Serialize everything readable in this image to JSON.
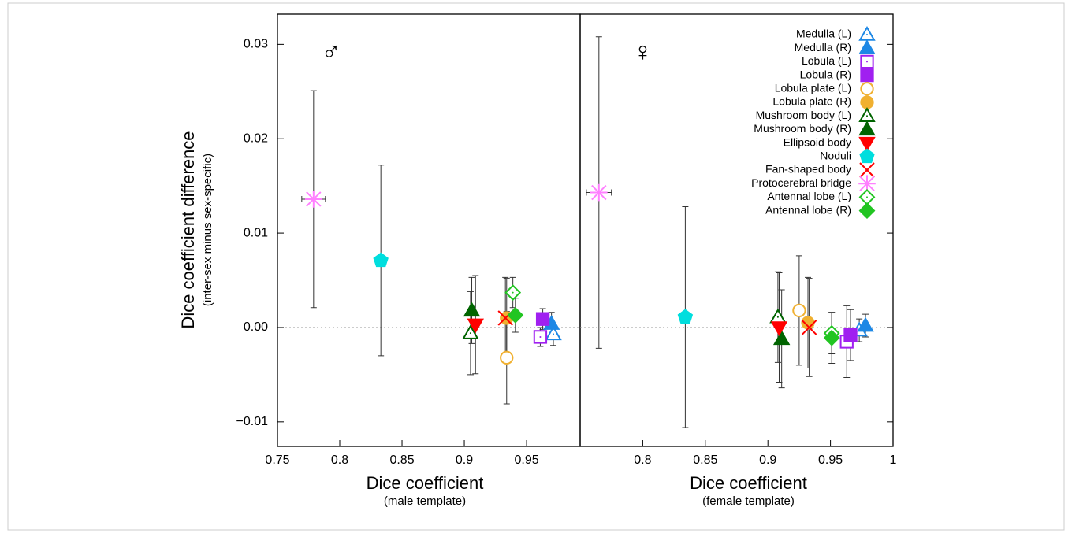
{
  "chart_data": [
    {
      "type": "scatter",
      "ylabel": "Dice coefficient difference",
      "ylabel_sub": "(inter-sex minus sex-specific)",
      "xlabel": "Dice coefficient",
      "xlabel_sub": "(male template)",
      "annotation": "♂",
      "xlim": [
        0.75,
        0.993
      ],
      "xticks": [
        0.75,
        0.8,
        0.85,
        0.9,
        0.95
      ],
      "ylim": [
        -0.0126,
        0.0332
      ],
      "yticks": [
        0.03,
        0.02,
        0.01,
        {
          "value": 0,
          "label": "0.00"
        },
        {
          "value": -0.01,
          "label": "−0.01"
        }
      ],
      "reference_line": 0,
      "series": [
        {
          "color": "#1e88e5",
          "marker": "triangle-open",
          "x": [
            0.9715
          ],
          "values": [
            -0.0007
          ],
          "xerr": [
            0.002
          ],
          "yerr": [
            0.0012
          ]
        },
        {
          "color": "#1e88e5",
          "marker": "triangle",
          "x": [
            0.97
          ],
          "values": [
            0.0004
          ],
          "xerr": [
            0.002
          ],
          "yerr": [
            0.0012
          ]
        },
        {
          "color": "#a020f0",
          "marker": "square-open",
          "x": [
            0.961
          ],
          "values": [
            -0.001
          ],
          "xerr": [
            0.002
          ],
          "yerr": [
            0.001
          ]
        },
        {
          "color": "#a020f0",
          "marker": "square",
          "x": [
            0.963
          ],
          "values": [
            0.0009
          ],
          "xerr": [
            0.002
          ],
          "yerr": [
            0.0011
          ]
        },
        {
          "color": "#f0b030",
          "marker": "circle-open",
          "x": [
            0.934
          ],
          "values": [
            -0.0032
          ],
          "xerr": [
            0.002
          ],
          "yerr": [
            0.0049
          ]
        },
        {
          "color": "#f0b030",
          "marker": "circle",
          "x": [
            0.934
          ],
          "values": [
            0.001
          ],
          "xerr": [
            0.002
          ],
          "yerr": [
            0.0042
          ]
        },
        {
          "color": "#006400",
          "marker": "triangle-open",
          "x": [
            0.905
          ],
          "values": [
            -0.0006
          ],
          "xerr": [
            0.002
          ],
          "yerr": [
            0.0044
          ]
        },
        {
          "color": "#006400",
          "marker": "triangle",
          "x": [
            0.906
          ],
          "values": [
            0.0018
          ],
          "xerr": [
            0.002
          ],
          "yerr": [
            0.0035
          ]
        },
        {
          "color": "#ff0000",
          "marker": "triangle-down",
          "x": [
            0.909
          ],
          "values": [
            0.0003
          ],
          "xerr": [
            0.002
          ],
          "yerr": [
            0.0052
          ]
        },
        {
          "color": "#00dede",
          "marker": "pentagon",
          "x": [
            0.833
          ],
          "values": [
            0.0071
          ],
          "xerr": [
            0.003
          ],
          "yerr": [
            0.0101
          ]
        },
        {
          "color": "#ff0000",
          "marker": "cross",
          "x": [
            0.933
          ],
          "values": [
            0.001
          ],
          "xerr": [
            0.002
          ],
          "yerr": [
            0.0043
          ]
        },
        {
          "color": "#ff80ff",
          "marker": "star",
          "x": [
            0.779
          ],
          "values": [
            0.0136
          ],
          "xerr": [
            0.0095
          ],
          "yerr": [
            0.0115
          ]
        },
        {
          "color": "#22c522",
          "marker": "diamond-open",
          "x": [
            0.939
          ],
          "values": [
            0.0037
          ],
          "xerr": [
            0.002
          ],
          "yerr": [
            0.0016
          ]
        },
        {
          "color": "#22c522",
          "marker": "diamond",
          "x": [
            0.941
          ],
          "values": [
            0.0013
          ],
          "xerr": [
            0.002
          ],
          "yerr": [
            0.0018
          ]
        }
      ]
    },
    {
      "type": "scatter",
      "xlabel": "Dice coefficient",
      "xlabel_sub": "(female template)",
      "annotation": "♀",
      "legend": "top right",
      "xlim": [
        0.75,
        1
      ],
      "xticks": [
        0.8,
        0.85,
        0.9,
        0.95,
        1
      ],
      "ylim": [
        -0.0126,
        0.0332
      ],
      "yticks": [
        0.03,
        0.02,
        0.01,
        {
          "value": 0,
          "label": "0.00"
        },
        {
          "value": -0.01,
          "label": "−0.01"
        }
      ],
      "reference_line": 0,
      "series": [
        {
          "name": "Medulla (L)",
          "color": "#1e88e5",
          "marker": "triangle-open",
          "x": [
            0.973
          ],
          "values": [
            -0.0003
          ],
          "xerr": [
            0.002
          ],
          "yerr": [
            0.0012
          ]
        },
        {
          "name": "Medulla (R)",
          "color": "#1e88e5",
          "marker": "triangle",
          "x": [
            0.978
          ],
          "values": [
            0.0002
          ],
          "xerr": [
            0.002
          ],
          "yerr": [
            0.0012
          ]
        },
        {
          "name": "Lobula (L)",
          "color": "#a020f0",
          "marker": "square-open",
          "x": [
            0.963
          ],
          "values": [
            -0.0015
          ],
          "xerr": [
            0.002
          ],
          "yerr": [
            0.0038
          ]
        },
        {
          "name": "Lobula (R)",
          "color": "#a020f0",
          "marker": "square",
          "x": [
            0.966
          ],
          "values": [
            -0.0008
          ],
          "xerr": [
            0.002
          ],
          "yerr": [
            0.0027
          ]
        },
        {
          "name": "Lobula plate (L)",
          "color": "#f0b030",
          "marker": "circle-open",
          "x": [
            0.925
          ],
          "values": [
            0.0018
          ],
          "xerr": [
            0.002
          ],
          "yerr": [
            0.0058
          ]
        },
        {
          "name": "Lobula plate (R)",
          "color": "#f0b030",
          "marker": "circle",
          "x": [
            0.932
          ],
          "values": [
            0.0005
          ],
          "xerr": [
            0.002
          ],
          "yerr": [
            0.0048
          ]
        },
        {
          "name": "Mushroom body (L)",
          "color": "#006400",
          "marker": "triangle-open",
          "x": [
            0.908
          ],
          "values": [
            0.0011
          ],
          "xerr": [
            0.002
          ],
          "yerr": [
            0.0048
          ]
        },
        {
          "name": "Mushroom body (R)",
          "color": "#006400",
          "marker": "triangle",
          "x": [
            0.911
          ],
          "values": [
            -0.0012
          ],
          "xerr": [
            0.002
          ],
          "yerr": [
            0.0052
          ]
        },
        {
          "name": "Ellipsoid body",
          "color": "#ff0000",
          "marker": "triangle-down",
          "x": [
            0.909
          ],
          "values": [
            0
          ],
          "xerr": [
            0.002
          ],
          "yerr": [
            0.0058
          ]
        },
        {
          "name": "Noduli",
          "color": "#00dede",
          "marker": "pentagon",
          "x": [
            0.834
          ],
          "values": [
            0.0011
          ],
          "xerr": [
            0.004
          ],
          "yerr": [
            0.0117
          ]
        },
        {
          "name": "Fan-shaped body",
          "color": "#ff0000",
          "marker": "cross",
          "x": [
            0.933
          ],
          "values": [
            0
          ],
          "xerr": [
            0.002
          ],
          "yerr": [
            0.0052
          ]
        },
        {
          "name": "Protocerebral bridge",
          "color": "#ff80ff",
          "marker": "star",
          "x": [
            0.765
          ],
          "values": [
            0.0143
          ],
          "xerr": [
            0.01
          ],
          "yerr": [
            0.0165
          ]
        },
        {
          "name": "Antennal lobe (L)",
          "color": "#22c522",
          "marker": "diamond-open",
          "x": [
            0.951
          ],
          "values": [
            -0.0006
          ],
          "xerr": [
            0.002
          ],
          "yerr": [
            0.0022
          ]
        },
        {
          "name": "Antennal lobe (R)",
          "color": "#22c522",
          "marker": "diamond",
          "x": [
            0.951
          ],
          "values": [
            -0.0011
          ],
          "xerr": [
            0.002
          ],
          "yerr": [
            0.0027
          ]
        }
      ]
    }
  ]
}
